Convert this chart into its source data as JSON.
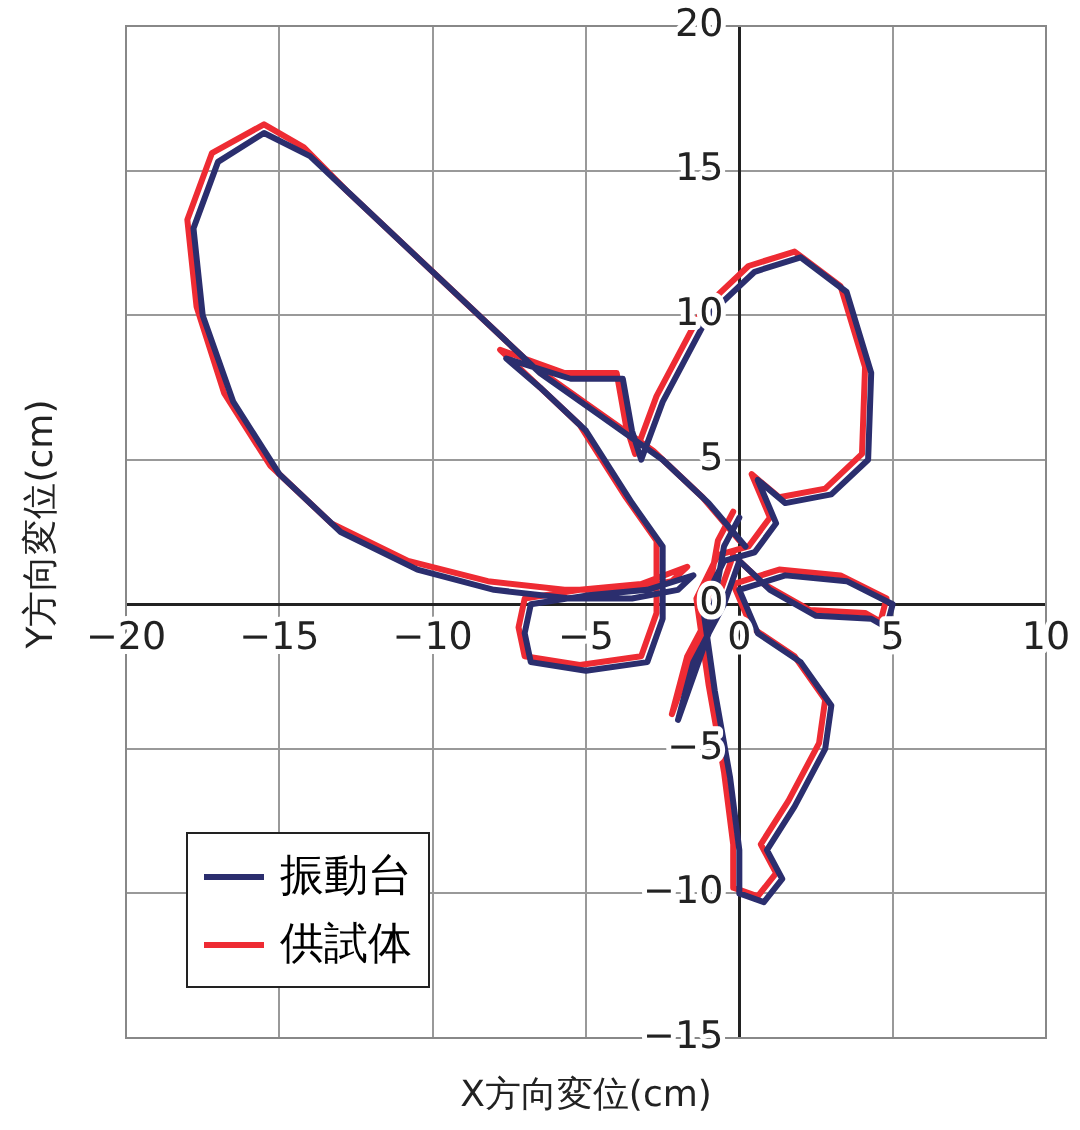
{
  "chart_data": {
    "type": "line",
    "xlabel": "X方向変位(cm)",
    "ylabel": "Y方向変位(cm)",
    "xlim": [
      -20,
      10
    ],
    "ylim": [
      -15,
      20
    ],
    "xticks": [
      -20,
      -15,
      -10,
      -5,
      0,
      5,
      10
    ],
    "yticks": [
      -15,
      -10,
      -5,
      0,
      5,
      10,
      15,
      20
    ],
    "grid": true,
    "legend": "bottom left",
    "marker": "none",
    "line_style": "solid",
    "series": [
      {
        "name": "振動台",
        "color": "#2b2e6e",
        "x": [
          0.2,
          -1,
          -2.5,
          -4.5,
          -6.5,
          -8.5,
          -10.5,
          -12.5,
          -14,
          -15.5,
          -17,
          -17.8,
          -17.5,
          -16.5,
          -15,
          -13,
          -10.5,
          -8,
          -5.5,
          -3.5,
          -2,
          -1.5,
          -3,
          -5,
          -6.8,
          -7,
          -6.8,
          -5,
          -3,
          -2.5,
          -2.5,
          -3.5,
          -5,
          -6.5,
          -7.6,
          -5.5,
          -3.8,
          -3.5,
          -3.2,
          -2.5,
          -1,
          0.5,
          2,
          3.5,
          4.3,
          4.2,
          3,
          1.5,
          0.6,
          1.2,
          0.5,
          -0.5,
          -1.2,
          -0.8,
          -0.3,
          0,
          0,
          0.8,
          1.4,
          0.9,
          1.8,
          2.8,
          3,
          2,
          0.6,
          0,
          1.5,
          3.5,
          5,
          4.8,
          4.3,
          2.5,
          1,
          0,
          -0.5,
          -1.5,
          -2,
          -1,
          -0.5,
          0
        ],
        "values": [
          2,
          3.5,
          5,
          6.5,
          8,
          10,
          12,
          14,
          15.5,
          16.3,
          15.3,
          13,
          10,
          7,
          4.5,
          2.5,
          1.2,
          0.5,
          0.2,
          0.2,
          0.5,
          1,
          0.5,
          0.3,
          0,
          -1,
          -2,
          -2.3,
          -2,
          -0.5,
          2,
          3.5,
          6,
          7.5,
          8.5,
          7.8,
          7.8,
          6,
          5,
          7,
          10,
          11.5,
          12,
          10.8,
          8,
          5,
          3.8,
          3.5,
          4.3,
          2.8,
          1.8,
          1.5,
          0,
          -3,
          -6,
          -8.5,
          -10,
          -10.3,
          -9.5,
          -8.5,
          -7,
          -5,
          -3.5,
          -2,
          -1,
          0.5,
          1,
          0.8,
          0,
          -0.8,
          -0.5,
          -0.4,
          0.5,
          1.5,
          0,
          -2,
          -4,
          -1,
          2,
          3
        ]
      },
      {
        "name": "供試体",
        "color": "#ee2b33",
        "x": [
          0,
          -1.2,
          -2.8,
          -4.8,
          -6.8,
          -8.8,
          -10.8,
          -12.8,
          -14.2,
          -15.5,
          -17.2,
          -18,
          -17.7,
          -16.8,
          -15.3,
          -13.3,
          -10.8,
          -8.2,
          -5.7,
          -3.7,
          -2.2,
          -1.7,
          -3.2,
          -5.2,
          -7,
          -7.2,
          -7,
          -5.2,
          -3.2,
          -2.7,
          -2.7,
          -3.7,
          -5.2,
          -6.7,
          -7.8,
          -5.7,
          -4,
          -3.7,
          -3.4,
          -2.7,
          -1.2,
          0.3,
          1.8,
          3.3,
          4.1,
          4,
          2.8,
          1.3,
          0.4,
          1,
          0.3,
          -0.7,
          -1.4,
          -1,
          -0.5,
          -0.2,
          -0.2,
          0.6,
          1.2,
          0.7,
          1.6,
          2.6,
          2.8,
          1.8,
          0.4,
          -0.2,
          1.3,
          3.3,
          4.8,
          4.6,
          4.1,
          2.3,
          0.8,
          -0.2,
          -0.7,
          -1.7,
          -2.2,
          -1.2,
          -0.7,
          -0.2
        ],
        "values": [
          2.2,
          3.7,
          5.3,
          6.8,
          8.3,
          10.3,
          12.3,
          14.3,
          15.8,
          16.6,
          15.6,
          13.3,
          10.3,
          7.3,
          4.8,
          2.8,
          1.5,
          0.8,
          0.5,
          0.5,
          0.8,
          1.3,
          0.7,
          0.5,
          0.2,
          -0.8,
          -1.8,
          -2.1,
          -1.8,
          -0.3,
          2.2,
          3.7,
          6.2,
          7.7,
          8.8,
          8,
          8,
          6.2,
          5.2,
          7.2,
          10.2,
          11.7,
          12.2,
          11,
          8.2,
          5.2,
          4,
          3.7,
          4.5,
          3,
          2,
          1.7,
          0.2,
          -2.8,
          -5.8,
          -8.3,
          -9.8,
          -10.1,
          -9.3,
          -8.3,
          -6.8,
          -4.8,
          -3.3,
          -1.8,
          -0.8,
          0.7,
          1.2,
          1,
          0.2,
          -0.6,
          -0.3,
          -0.2,
          0.7,
          1.7,
          0.2,
          -1.8,
          -3.8,
          -0.8,
          2.2,
          3.2
        ]
      }
    ]
  }
}
